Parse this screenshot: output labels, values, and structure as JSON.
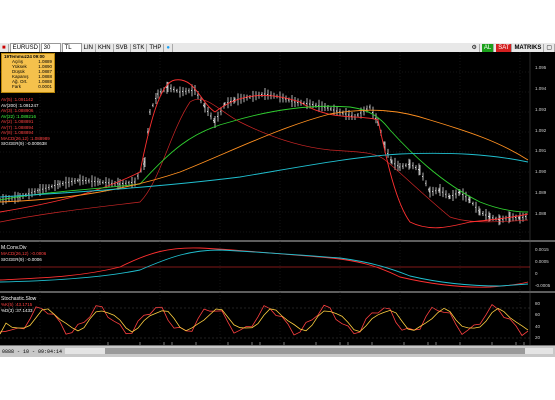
{
  "toolbar": {
    "symbol": "EURUSD",
    "period": "30",
    "unit": "TL",
    "buttons": [
      "LIN",
      "KHN",
      "SVB",
      "STK",
      "THP"
    ],
    "buy_label": "AL",
    "sell_label": "SAT",
    "matriks_label": "MATRIKS"
  },
  "quote": {
    "title": "19Temmuz24 09:00",
    "rows": [
      {
        "label": "Açılış",
        "value": "1.0889"
      },
      {
        "label": "Yüksek",
        "value": "1.0890"
      },
      {
        "label": "Düşük",
        "value": "1.0887"
      },
      {
        "label": "Kapanış",
        "value": "1.0888"
      },
      {
        "label": "Ağ. Ort.",
        "value": "1.0888"
      },
      {
        "label": "Fark",
        "value": "0.0001"
      }
    ]
  },
  "legend_main": [
    {
      "text": "AV(5)     :1.091142",
      "color": "#ff4040"
    },
    {
      "text": "AV(200)  :1.091247",
      "color": "#ffffff"
    },
    {
      "text": "AV(3)     :1.088906",
      "color": "#ff4040"
    },
    {
      "text": "AV(22)   :1.089216",
      "color": "#40ff40"
    },
    {
      "text": "AV(2)     :1.088891",
      "color": "#ff4040"
    },
    {
      "text": "AV(7)     :1.088894",
      "color": "#ff4040"
    },
    {
      "text": "AV(8)     :1.088894",
      "color": "#ff4040"
    },
    {
      "text": "MACD(26,12) :1.088989",
      "color": "#ff4040"
    },
    {
      "text": "SIGGER(9)  :-0.000638",
      "color": "#ffffff"
    }
  ],
  "pane2": {
    "title": "M.Conv.Div",
    "legend": [
      {
        "text": "MACD(26,12)  :-0.0006",
        "color": "#ff4040"
      },
      {
        "text": "SIGGER(9)    :-0.0006",
        "color": "#ffffff"
      }
    ]
  },
  "pane3": {
    "title": "Stochastic.Slow",
    "legend": [
      {
        "text": "%K(5)      :43.1715",
        "color": "#ff4040"
      },
      {
        "text": "%D(3)      :37.1433",
        "color": "#ffffff"
      }
    ]
  },
  "yaxis_main": [
    "1.095",
    "1.094",
    "1.093",
    "1.092",
    "1.091",
    "1.090",
    "1.089",
    "1.088"
  ],
  "yaxis_pane2": [
    "0.0015",
    "0.0005",
    "0",
    "-0.0005"
  ],
  "yaxis_pane3": [
    "80",
    "60",
    "40",
    "20"
  ],
  "status": {
    "text": "0888 - 10 - 09:04:14"
  },
  "colors": {
    "ma_fast": "#ff3030",
    "ma_green": "#30d030",
    "ma_orange": "#ff9020",
    "ma_cyan": "#20c0d0",
    "price": "#ffffff"
  }
}
